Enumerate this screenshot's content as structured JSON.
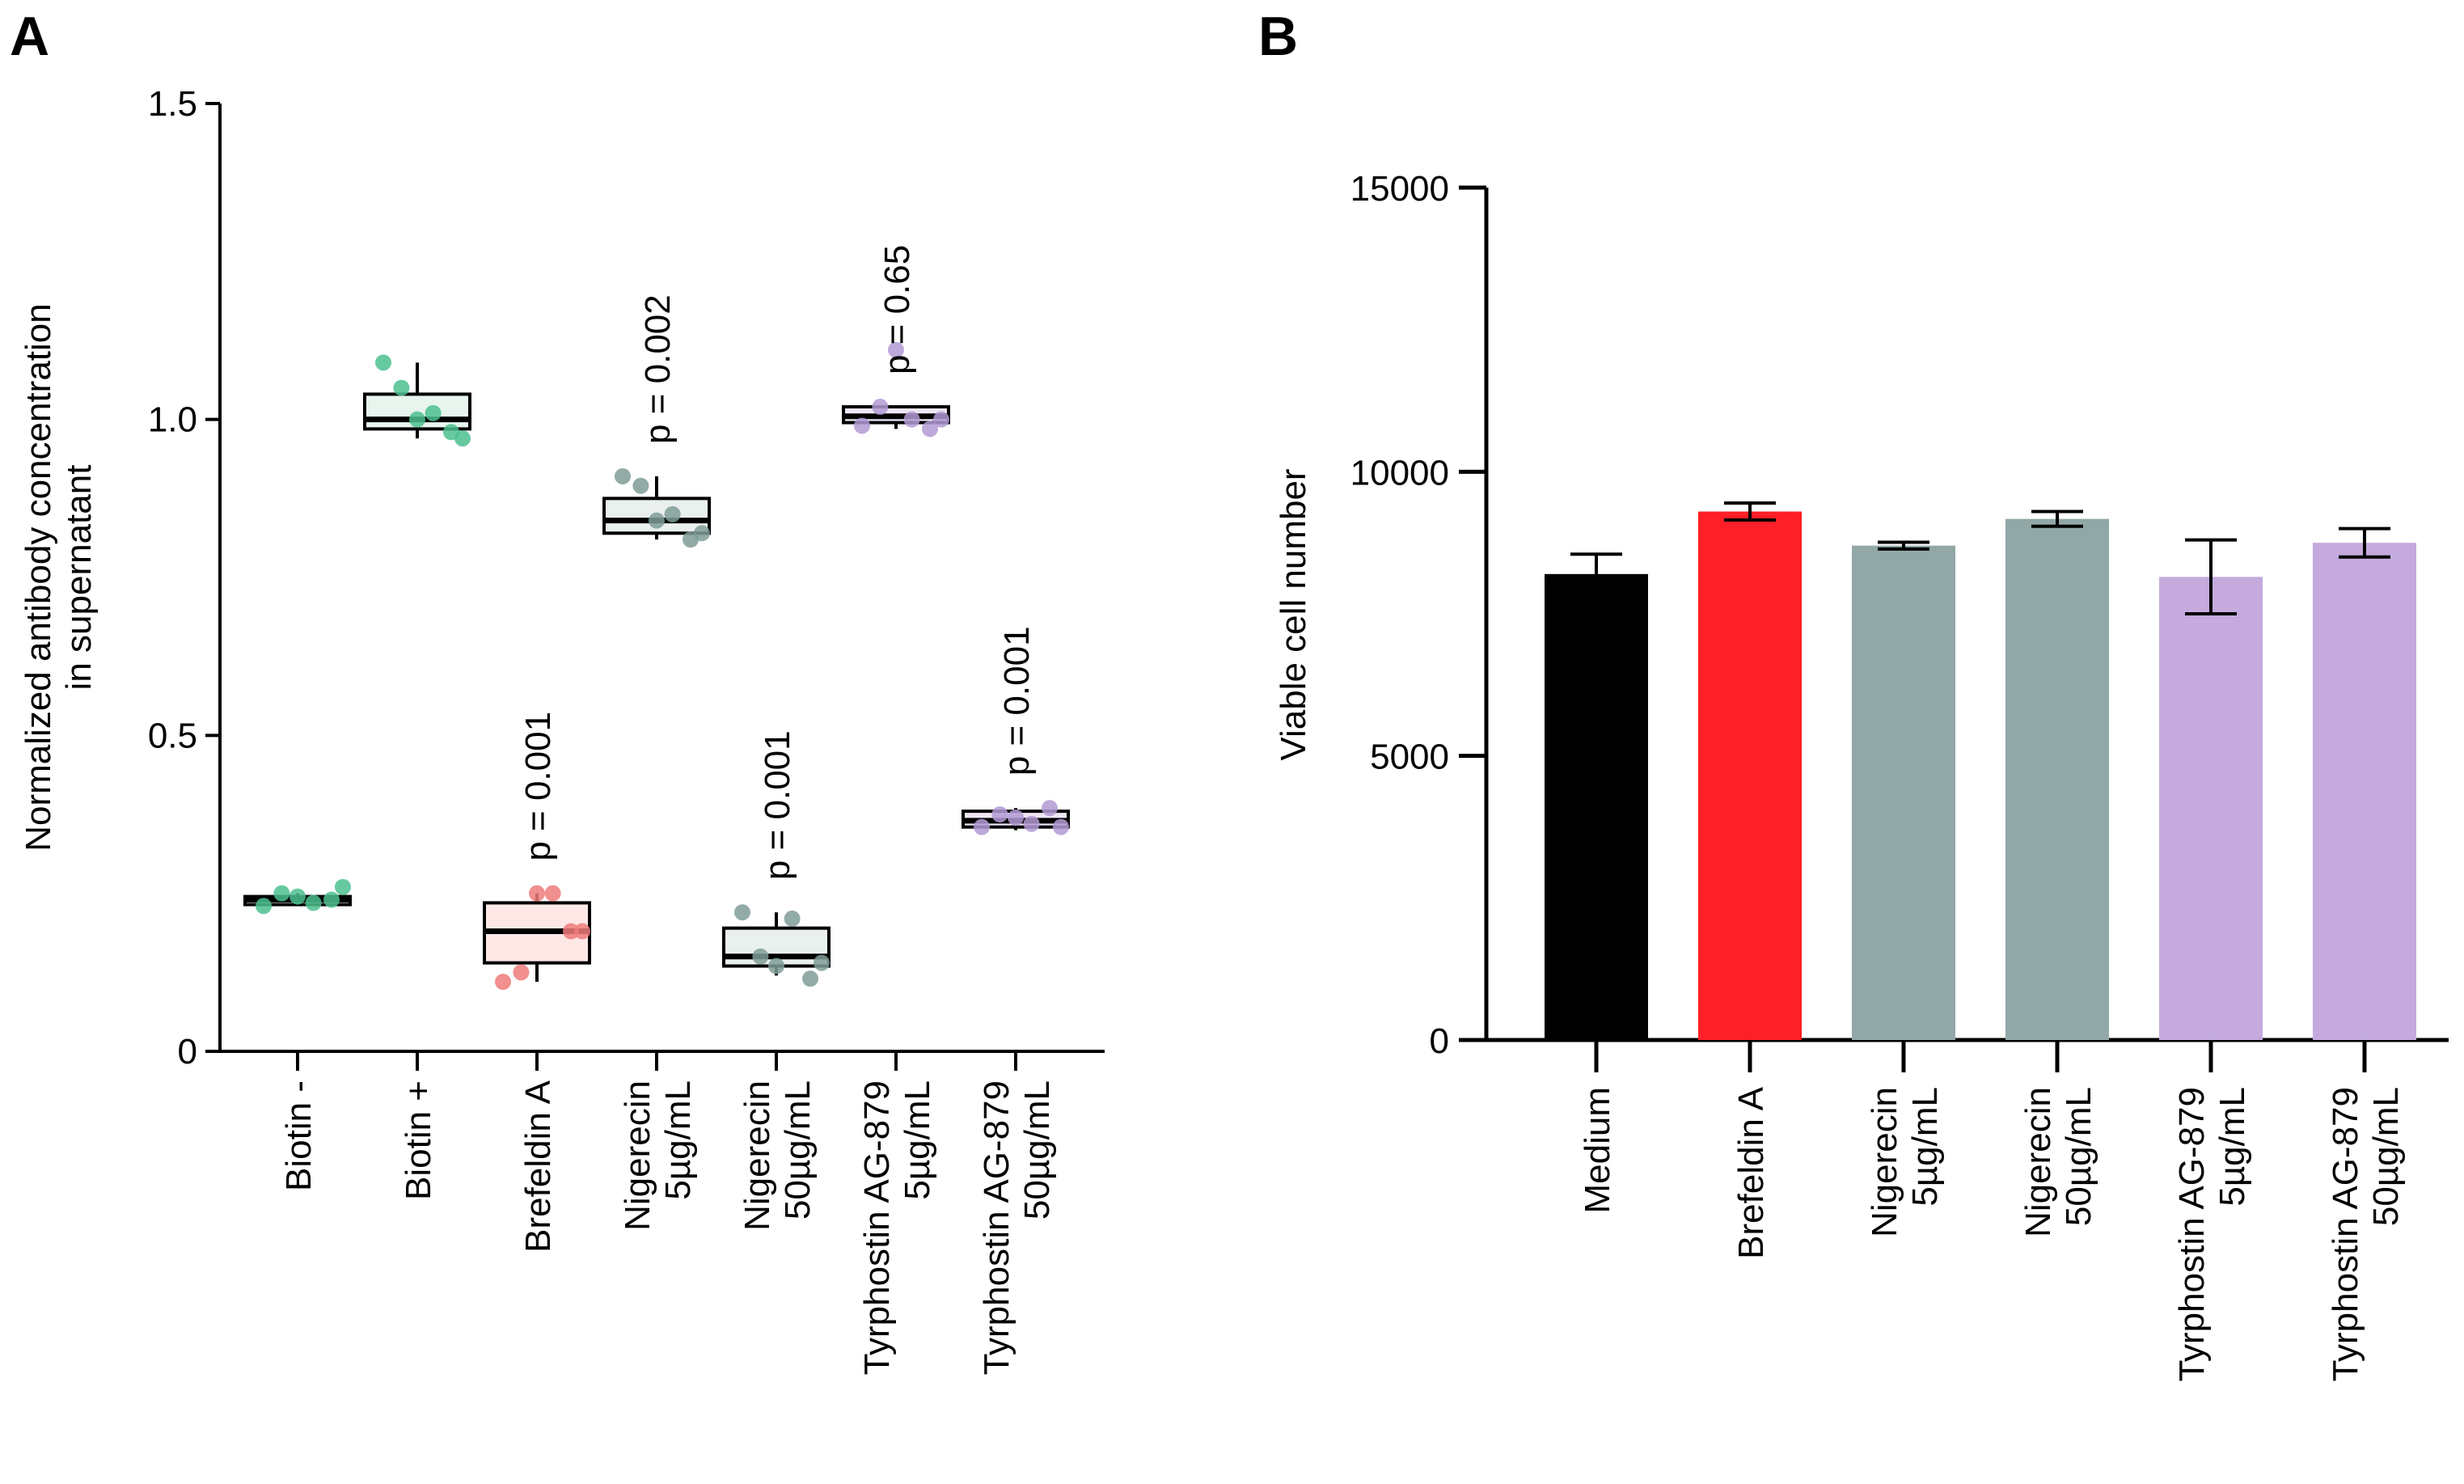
{
  "chart_data": [
    {
      "panel": "A",
      "type": "box",
      "ylabel": [
        "Normalized antibody concentration",
        "in supernatant"
      ],
      "ylim": [
        0,
        1.5
      ],
      "yticks": [
        {
          "value": 0,
          "label": "0"
        },
        {
          "value": 0.5,
          "label": "0.5"
        },
        {
          "value": 1.0,
          "label": "1.0"
        },
        {
          "value": 1.5,
          "label": "1.5"
        }
      ],
      "groups": [
        {
          "label": [
            "Biotin -"
          ],
          "color": "#4cbf8f",
          "fill": "#e8f4ee",
          "box": {
            "q1": 0.235,
            "median": 0.24,
            "q3": 0.245,
            "whisker_low": 0.23,
            "whisker_high": 0.25
          },
          "points": [
            0.23,
            0.25,
            0.245,
            0.235,
            0.24,
            0.26
          ],
          "pvalue": ""
        },
        {
          "label": [
            "Biotin +"
          ],
          "color": "#4cbf8f",
          "fill": "#e8f4ee",
          "box": {
            "q1": 0.985,
            "median": 1.0,
            "q3": 1.04,
            "whisker_low": 0.97,
            "whisker_high": 1.09
          },
          "points": [
            1.09,
            1.05,
            1.0,
            1.01,
            0.98,
            0.97
          ],
          "pvalue": ""
        },
        {
          "label": [
            "Brefeldin A"
          ],
          "color": "#f07b7b",
          "fill": "#fde8e6",
          "box": {
            "q1": 0.14,
            "median": 0.19,
            "q3": 0.235,
            "whisker_low": 0.11,
            "whisker_high": 0.25
          },
          "points": [
            0.11,
            0.125,
            0.25,
            0.25,
            0.19,
            0.19
          ],
          "pvalue": "p = 0.001"
        },
        {
          "label": [
            "Nigerecin",
            "5µg/mL"
          ],
          "color": "#7f9c97",
          "fill": "#eaf0ee",
          "box": {
            "q1": 0.82,
            "median": 0.84,
            "q3": 0.875,
            "whisker_low": 0.81,
            "whisker_high": 0.91
          },
          "points": [
            0.91,
            0.895,
            0.84,
            0.85,
            0.81,
            0.82
          ],
          "pvalue": "p = 0.002"
        },
        {
          "label": [
            "Nigerecin",
            "50µg/mL"
          ],
          "color": "#7f9c97",
          "fill": "#eaf0ee",
          "box": {
            "q1": 0.135,
            "median": 0.15,
            "q3": 0.195,
            "whisker_low": 0.12,
            "whisker_high": 0.22
          },
          "points": [
            0.22,
            0.15,
            0.135,
            0.21,
            0.115,
            0.14
          ],
          "pvalue": "p = 0.001"
        },
        {
          "label": [
            "Tyrphostin AG-879",
            "5µg/mL"
          ],
          "color": "#b39ad3",
          "fill": "#eee6f5",
          "box": {
            "q1": 0.995,
            "median": 1.005,
            "q3": 1.02,
            "whisker_low": 0.985,
            "whisker_high": 1.02
          },
          "points": [
            0.99,
            1.02,
            1.11,
            1.0,
            0.985,
            1.0
          ],
          "pvalue": "p = 0.65"
        },
        {
          "label": [
            "Tyrphostin AG-879",
            "50µg/mL"
          ],
          "color": "#b39ad3",
          "fill": "#eee6f5",
          "box": {
            "q1": 0.355,
            "median": 0.365,
            "q3": 0.38,
            "whisker_low": 0.35,
            "whisker_high": 0.385
          },
          "points": [
            0.355,
            0.375,
            0.37,
            0.36,
            0.385,
            0.355
          ],
          "pvalue": "p = 0.001"
        }
      ]
    },
    {
      "panel": "B",
      "type": "bar",
      "ylabel": "Viable cell number",
      "ylim": [
        0,
        15000
      ],
      "yticks": [
        {
          "value": 0,
          "label": "0"
        },
        {
          "value": 5000,
          "label": "5000"
        },
        {
          "value": 10000,
          "label": "10000"
        },
        {
          "value": 15000,
          "label": "15000"
        }
      ],
      "categories": [
        {
          "label": [
            "Medium"
          ],
          "value": 8200,
          "error": 350,
          "color": "#000000"
        },
        {
          "label": [
            "Brefeldin A"
          ],
          "value": 9300,
          "error": 150,
          "color": "#ff1f26"
        },
        {
          "label": [
            "Nigerecin",
            "5µg/mL"
          ],
          "value": 8700,
          "error": 60,
          "color": "#91a8a6"
        },
        {
          "label": [
            "Nigerecin",
            "50µg/mL"
          ],
          "value": 9170,
          "error": 130,
          "color": "#91a8a6"
        },
        {
          "label": [
            "Tyrphostin AG-879",
            "5µg/mL"
          ],
          "value": 8150,
          "error": 650,
          "color": "#c4aadd"
        },
        {
          "label": [
            "Tyrphostin AG-879",
            "50µg/mL"
          ],
          "value": 8750,
          "error": 250,
          "color": "#c4aadd"
        }
      ]
    }
  ]
}
